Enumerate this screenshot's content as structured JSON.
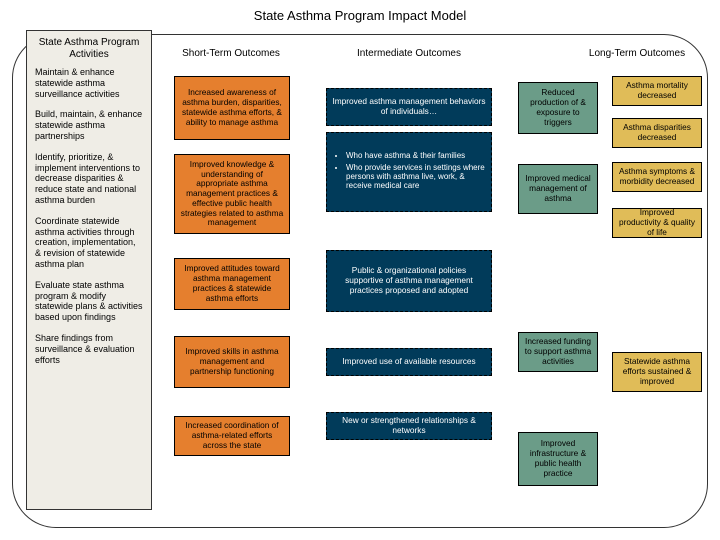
{
  "title": "State Asthma Program Impact Model",
  "headers": {
    "activities": "State Asthma Program Activities",
    "short": "Short-Term Outcomes",
    "intermediate": "Intermediate Outcomes",
    "long": "Long-Term Outcomes"
  },
  "activities": {
    "a1": "Maintain & enhance statewide asthma surveillance activities",
    "a2": "Build, maintain, & enhance statewide asthma partnerships",
    "a3": "Identify, prioritize, & implement interventions to decrease disparities & reduce state and national asthma burden",
    "a4": "Coordinate statewide asthma activities through creation, implementation, & revision of statewide asthma plan",
    "a5": "Evaluate state asthma program & modify statewide plans & activities based upon findings",
    "a6": "Share findings from surveillance & evaluation efforts"
  },
  "short": {
    "s1": "Increased awareness of asthma burden, disparities, statewide asthma efforts, & ability to manage asthma",
    "s2": "Improved knowledge & understanding of appropriate asthma management practices & effective public health strategies related to asthma management",
    "s3": "Improved attitudes toward asthma management practices & statewide asthma efforts",
    "s4": "Improved skills in asthma management and partnership functioning",
    "s5": "Increased coordination of asthma-related efforts across the state"
  },
  "intermediate_navy": {
    "i1": "Improved asthma management behaviors of individuals…",
    "i2a": "Who have asthma & their families",
    "i2b": "Who provide services in settings where persons with asthma live, work, & receive medical care",
    "i3": "Public & organizational policies supportive of asthma management practices proposed and adopted",
    "i4": "Improved use of available resources",
    "i5": "New or strengthened relationships & networks"
  },
  "intermediate_teal": {
    "t1": "Reduced production of & exposure to triggers",
    "t2": "Improved medical management of asthma",
    "t3": "Increased funding to support asthma activities",
    "t4": "Improved infrastructure & public health practice"
  },
  "long": {
    "g1": "Asthma mortality decreased",
    "g2": "Asthma disparities decreased",
    "g3": "Asthma symptoms & morbidity decreased",
    "g4": "Improved productivity & quality of life",
    "g5": "Statewide asthma efforts sustained & improved"
  },
  "colors": {
    "orange": "#e57f2e",
    "navy": "#013b5a",
    "teal": "#6b9c88",
    "gold": "#e0bc58",
    "panel": "#efede6"
  }
}
